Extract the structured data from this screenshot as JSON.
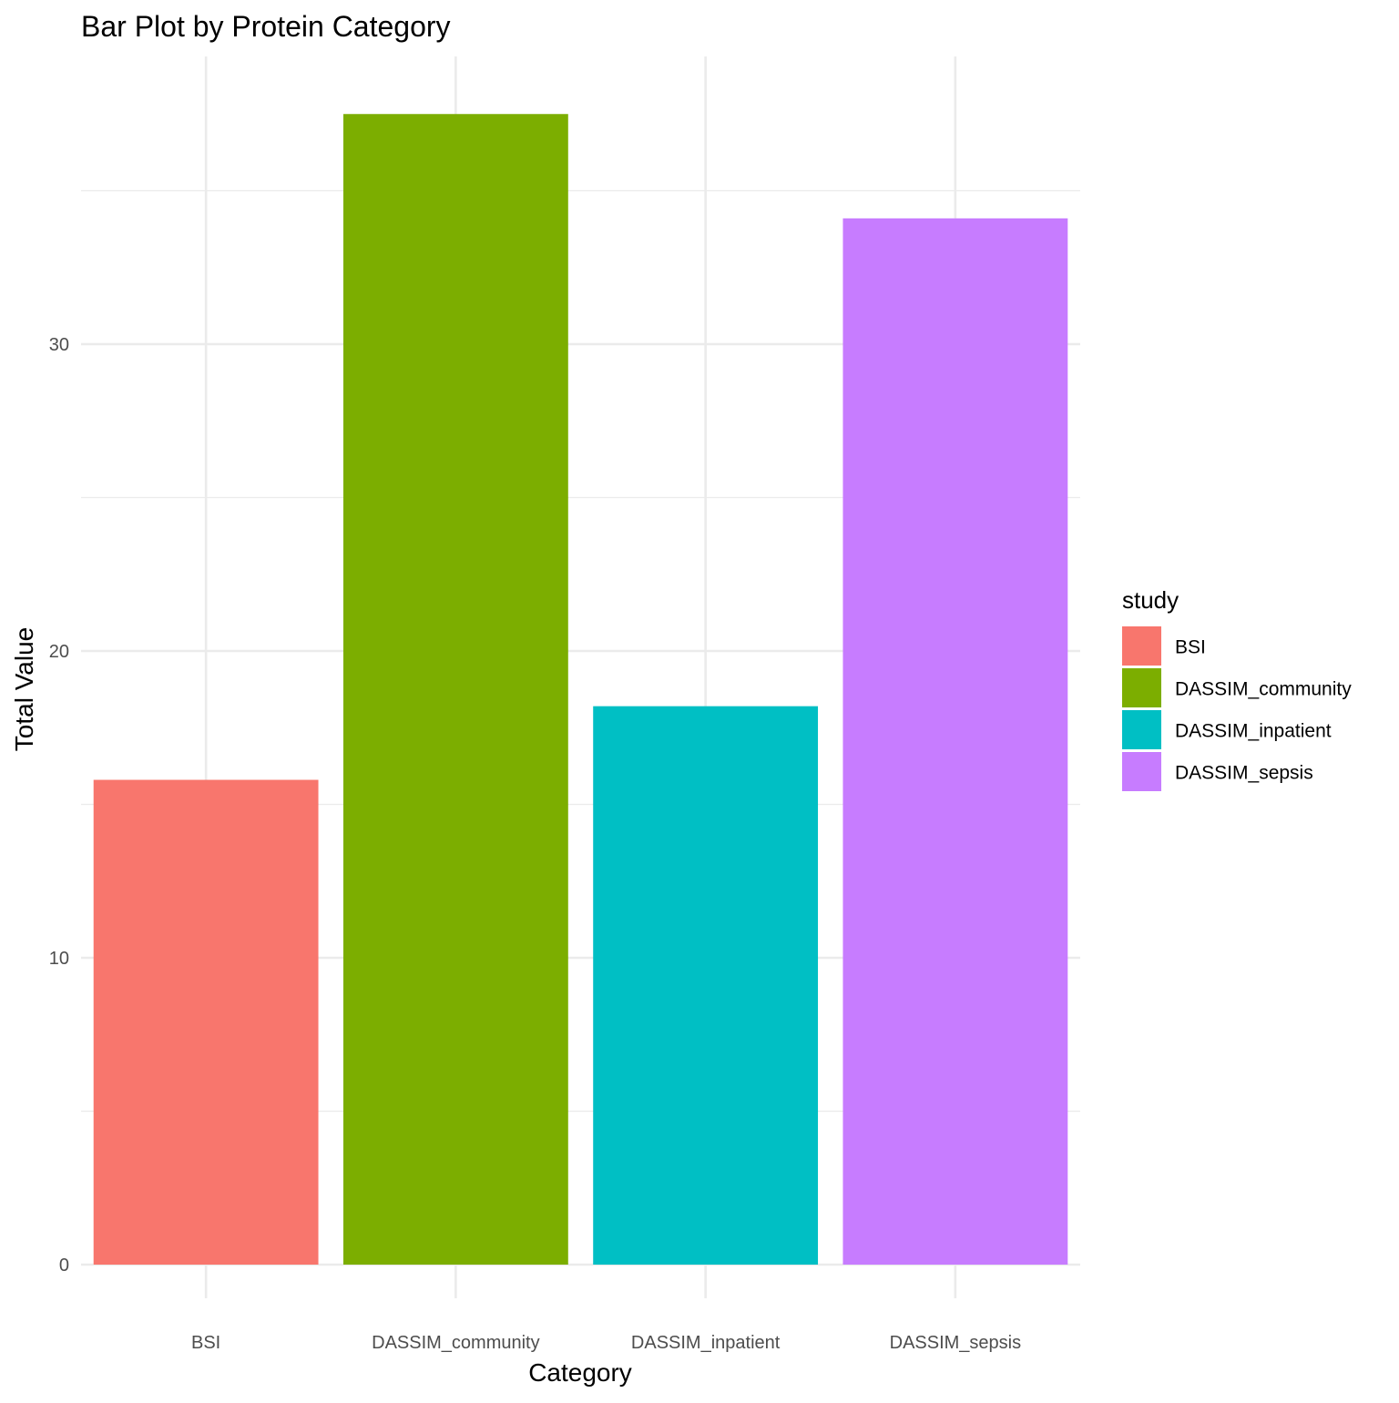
{
  "chart_data": {
    "type": "bar",
    "title": "Bar Plot by Protein Category",
    "xlabel": "Category",
    "ylabel": "Total Value",
    "categories": [
      "BSI",
      "DASSIM_community",
      "DASSIM_inpatient",
      "DASSIM_sepsis"
    ],
    "values": [
      15.8,
      37.5,
      18.2,
      34.1
    ],
    "colors": [
      "#F8766D",
      "#7CAE00",
      "#00BFC4",
      "#C77CFF"
    ],
    "ylim": [
      0,
      39.8
    ],
    "yticks": [
      0,
      10,
      20,
      30
    ],
    "ytick_labels": [
      "0",
      "10",
      "20",
      "30"
    ],
    "grid": true,
    "legend": {
      "title": "study",
      "placement": "right",
      "entries": [
        "BSI",
        "DASSIM_community",
        "DASSIM_inpatient",
        "DASSIM_sepsis"
      ]
    }
  }
}
